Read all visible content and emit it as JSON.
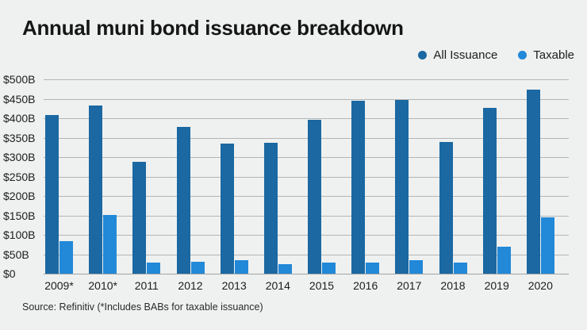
{
  "chart_data": {
    "type": "bar",
    "title": "Annual muni bond issuance breakdown",
    "categories": [
      "2009*",
      "2010*",
      "2011",
      "2012",
      "2013",
      "2014",
      "2015",
      "2016",
      "2017",
      "2018",
      "2019",
      "2020"
    ],
    "series": [
      {
        "name": "All Issuance",
        "color": "#1b68a2",
        "values": [
          409,
          433,
          287,
          377,
          334,
          337,
          396,
          444,
          448,
          338,
          426,
          474
        ]
      },
      {
        "name": "Taxable",
        "color": "#2288d8",
        "values": [
          84,
          152,
          28,
          31,
          35,
          24,
          28,
          29,
          35,
          29,
          70,
          144
        ]
      }
    ],
    "ylim": [
      0,
      500
    ],
    "yticks": [
      {
        "value": 0,
        "label": "$0"
      },
      {
        "value": 50,
        "label": "$50B"
      },
      {
        "value": 100,
        "label": "$100B"
      },
      {
        "value": 150,
        "label": "$150B"
      },
      {
        "value": 200,
        "label": "$200B"
      },
      {
        "value": 250,
        "label": "$250B"
      },
      {
        "value": 300,
        "label": "$300B"
      },
      {
        "value": 350,
        "label": "$350B"
      },
      {
        "value": 400,
        "label": "$400B"
      },
      {
        "value": 450,
        "label": "$450B"
      },
      {
        "value": 500,
        "label": "$500B"
      }
    ],
    "grid": true,
    "legend_position": "top-right",
    "background_color": "#eff1f0",
    "gridline_color": "#b3b6b5",
    "source": "Source: Refinitiv (*Includes BABs for taxable issuance)"
  }
}
